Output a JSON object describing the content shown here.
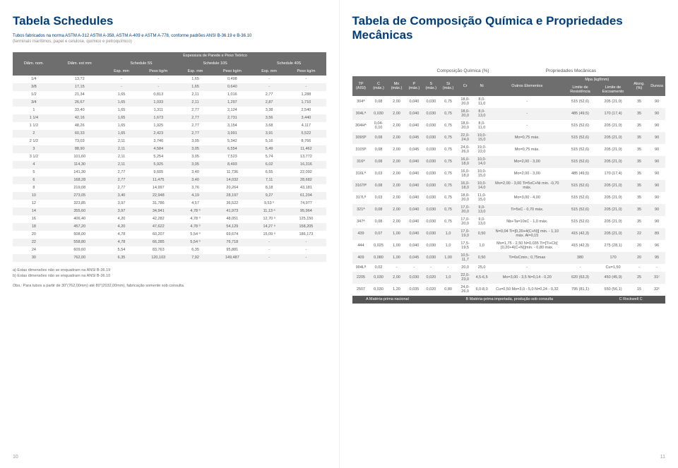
{
  "left": {
    "title": "Tabela Schedules",
    "sub1": "Tubos fabricados na norma ASTM A-312 ASTM A-358, ASTM A-409 e ASTM A-778, conforme padrões ANSI B-36.19 e B-36.10",
    "sub2": "(terminais marítimos, papel e celulose, químico e petroquímico)",
    "hdr": "Espessura de Parede e Peso Teórico",
    "cols": [
      "Diâm. nom.",
      "Diâm. ext mm",
      "Schedule 5S",
      "",
      "Schedule 10S",
      "",
      "Schedule 40S",
      ""
    ],
    "sub_cols": [
      "",
      "",
      "Esp. mm",
      "Peso kg/m",
      "Esp. mm",
      "Peso kg/m",
      "Esp. mm",
      "Peso kg/m"
    ],
    "rows": [
      [
        "1/4",
        "13,72",
        "-",
        "-",
        "1,65",
        "0,498",
        "-",
        "-"
      ],
      [
        "3/8",
        "17,15",
        "-",
        "-",
        "1,65",
        "0,640",
        "-",
        "-"
      ],
      [
        "1/2",
        "21,34",
        "1,65",
        "0,813",
        "2,11",
        "1,016",
        "2,77",
        "1,288"
      ],
      [
        "3/4",
        "26,67",
        "1,65",
        "1,033",
        "2,11",
        "1,297",
        "2,87",
        "1,710"
      ],
      [
        "1",
        "33,40",
        "1,65",
        "1,311",
        "2,77",
        "2,124",
        "3,38",
        "2,540"
      ],
      [
        "1 1/4",
        "42,16",
        "1,65",
        "1,673",
        "2,77",
        "2,731",
        "3,56",
        "3,440"
      ],
      [
        "1 1/2",
        "48,26",
        "1,65",
        "1,925",
        "2,77",
        "3,154",
        "3,68",
        "4,117"
      ],
      [
        "2",
        "60,33",
        "1,65",
        "2,423",
        "2,77",
        "3,991",
        "3,91",
        "5,522"
      ],
      [
        "2 1/2",
        "73,03",
        "2,11",
        "3,746",
        "3,05",
        "5,342",
        "5,16",
        "8,766"
      ],
      [
        "3",
        "88,90",
        "2,11",
        "4,584",
        "3,05",
        "6,554",
        "5,49",
        "11,462"
      ],
      [
        "3 1/2",
        "101,60",
        "2,11",
        "5,254",
        "3,05",
        "7,523",
        "5,74",
        "13,772"
      ],
      [
        "4",
        "114,30",
        "2,11",
        "5,925",
        "3,05",
        "8,493",
        "6,02",
        "16,316"
      ],
      [
        "5",
        "141,30",
        "2,77",
        "9,605",
        "3,40",
        "11,736",
        "6,55",
        "22,092"
      ],
      [
        "6",
        "168,28",
        "2,77",
        "11,475",
        "3,40",
        "14,032",
        "7,11",
        "28,682"
      ],
      [
        "8",
        "219,08",
        "2,77",
        "14,997",
        "3,76",
        "20,264",
        "8,18",
        "43,181"
      ],
      [
        "10",
        "273,05",
        "3,40",
        "22,948",
        "4,19",
        "28,197",
        "9,27",
        "61,204"
      ],
      [
        "12",
        "323,85",
        "3,97",
        "31,786",
        "4,57",
        "36,522",
        "9,53 ᵇ",
        "74,977"
      ],
      [
        "14",
        "355,60",
        "3,97",
        "34,941",
        "4,78 ᵇ",
        "41,973",
        "11,13 ᵃ",
        "95,964"
      ],
      [
        "16",
        "406,40",
        "4,20",
        "42,282",
        "4,78 ᵇ",
        "48,051",
        "12,70 ᵃ",
        "125,150"
      ],
      [
        "18",
        "457,20",
        "4,20",
        "47,622",
        "4,78 ᵇ",
        "54,129",
        "14,27 ᵃ",
        "158,205"
      ],
      [
        "20",
        "508,00",
        "4,78",
        "60,207",
        "5,54 ᵇ",
        "69,674",
        "15,09 ᵃ",
        "186,173"
      ],
      [
        "22",
        "558,80",
        "4,78",
        "66,285",
        "5,54 ᵇ",
        "76,718",
        "-",
        "-"
      ],
      [
        "24",
        "609,60",
        "5,54",
        "83,763",
        "6,35",
        "95,881",
        "-",
        "-"
      ],
      [
        "30",
        "762,00",
        "6,35",
        "120,103",
        "7,92",
        "149,487",
        "-",
        "-"
      ]
    ],
    "note_a": "a) Estas dimensões não se enquadram na ANSI B-36.19",
    "note_b": "b) Estas dimensões não se enquadram na ANSI B-36.10",
    "obs": "Obs.: Para tubos a partir de 30\"(762,00mm) até 80\"(2032,00mm), fabricação somente sob consulta.",
    "pg": "10"
  },
  "right": {
    "title": "Tabela de Composição Química e Propriedades Mecânicas",
    "sect1": "Composição Química (%)",
    "sect2": "Propriedades Mecânicas",
    "cols": [
      "TP (AISI)",
      "C (máx.)",
      "Mn (máx.)",
      "P (máx.)",
      "S (máx.)",
      "Si (máx.)",
      "Cr",
      "Ni",
      "Outros Elementos",
      "Mpa (kgf/mm)",
      "",
      "Along. (%)",
      "Dureza"
    ],
    "sub_cols": [
      "",
      "",
      "",
      "",
      "",
      "",
      "",
      "",
      "",
      "Limite de Resistência",
      "Limite de Escoamento",
      "Em 2 pol",
      "HRB (máx.)"
    ],
    "rows": [
      [
        "304ᴬ",
        "0,08",
        "2,00",
        "0,040",
        "0,030",
        "0,75",
        "18,0-20,0",
        "8,0-11,0",
        "-",
        "515 (52,6)",
        "205 (21,0)",
        "35",
        "90"
      ],
      [
        "304Lᴬ",
        "0,030",
        "2,00",
        "0,040",
        "0,030",
        "0,75",
        "18,0-20,0",
        "8,0-13,0",
        "-",
        "485 (49,5)",
        "170 (17,4)",
        "35",
        "90"
      ],
      [
        "304Hᴬ",
        "0,04-0,10",
        "2,00",
        "0,040",
        "0,030",
        "0,75",
        "18,0-20,0",
        "8,0-11,0",
        "-",
        "515 (52,6)",
        "205 (21,0)",
        "35",
        "90"
      ],
      [
        "309Sᴮ",
        "0,08",
        "2,00",
        "0,045",
        "0,030",
        "0,75",
        "22,0-24,0",
        "19,0-15,0",
        "Mo=0,75 máx.",
        "515 (52,6)",
        "205 (21,0)",
        "35",
        "90"
      ],
      [
        "310Sᴮ",
        "0,08",
        "2,00",
        "0,045",
        "0,030",
        "0,75",
        "24,0-26,0",
        "19,0-22,0",
        "Mo=0,75 máx.",
        "515 (52,6)",
        "205 (21,0)",
        "35",
        "90"
      ],
      [
        "316ᴬ",
        "0,08",
        "2,00",
        "0,040",
        "0,030",
        "0,75",
        "16,0-18,0",
        "10,0-14,0",
        "Mo=2,00 - 3,00",
        "515 (52,6)",
        "205 (21,0)",
        "35",
        "90"
      ],
      [
        "316Lᴬ",
        "0,03",
        "2,00",
        "0,040",
        "0,030",
        "0,75",
        "16,0-18,0",
        "10,0-15,0",
        "Mo=2,00 - 3,00",
        "485 (49,5)",
        "170 (17,4)",
        "35",
        "90"
      ],
      [
        "316Tiᴮ",
        "0,08",
        "2,00",
        "0,040",
        "0,030",
        "0,75",
        "16,0-18,0",
        "10,0-14,0",
        "Mo=2,00 - 3,00 Ti=5xC+Ni min. -0,70 máx.",
        "515 (52,6)",
        "205 (21,0)",
        "35",
        "90"
      ],
      [
        "317Lᴮ",
        "0,03",
        "2,00",
        "0,040",
        "0,030",
        "0,75",
        "18,0-20,0",
        "11,0-15,0",
        "Mo=3,00 - 4,00",
        "515 (52,6)",
        "205 (21,0)",
        "35",
        "90"
      ],
      [
        "321ᴬ",
        "0,08",
        "2,00",
        "0,040",
        "0,030",
        "0,75",
        "17,0-20,0",
        "9,0-13,0",
        "Ti=5xC - 0,70 máx.",
        "515 (52,6)",
        "205 (21,0)",
        "35",
        "90"
      ],
      [
        "347ᴬ",
        "0,08",
        "2,00",
        "0,040",
        "0,030",
        "0,75",
        "17,0-20,0",
        "9,0-13,0",
        "Nb+Ta=10xC - 1,0 máx.",
        "515 (52,6)",
        "205 (21,0)",
        "35",
        "90"
      ],
      [
        "439",
        "0,07",
        "1,00",
        "0,040",
        "0,030",
        "1,0",
        "17,0-19,0",
        "0,50",
        "N=0,04 Ti=[0,20+4(C+N)] min. - 1,10 máx. Al=0,15",
        "415 (42,3)",
        "205 (21,0)",
        "22",
        "89"
      ],
      [
        "444",
        "0,025",
        "1,00",
        "0,040",
        "0,030",
        "1,0",
        "17,5-19,5",
        "1,0",
        "Mo=1,75 - 2,50 N=0,035 Ti=[Ti+Cb][0,20+4(C+N)]min. - 0,80 máx.",
        "415 (42,3)",
        "275 (28,1)",
        "20",
        "96"
      ],
      [
        "409",
        "0,080",
        "1,00",
        "0,045",
        "0,030",
        "1,00",
        "10,5-11,7",
        "0,50",
        "Ti=6xCmin.; 0,75max",
        "380",
        "170",
        "20",
        "95"
      ],
      [
        "904Lᴮ",
        "0,02",
        "-",
        "-",
        "-",
        "-",
        "20,0",
        "25,0",
        "-",
        "-",
        "Cu=1,50",
        "-",
        "-"
      ],
      [
        "2205",
        "0,030",
        "2,00",
        "0,030",
        "0,020",
        "1,0",
        "22,0-23,0",
        "4,5-6,5",
        "Mo=3,00 - 3,5 N=0,14 - 0,20",
        "620 (63,3)",
        "450 (45,9)",
        "25",
        "31ᶜ"
      ],
      [
        "2507",
        "0,030",
        "1,20",
        "0,035",
        "0,020",
        "0,80",
        "24,0-26,0",
        "6,0-8,0",
        "Cu=0,50 Mo=3,0 - 5,0 N=0,24 - 0,32",
        "795 (81,1)",
        "550 (56,1)",
        "15",
        "32ᶜ"
      ]
    ],
    "footer": [
      "A Matéria-prima nacional",
      "B Matéria-prima importada, produção sob consulta",
      "C Rockwell C"
    ],
    "pg": "11"
  }
}
